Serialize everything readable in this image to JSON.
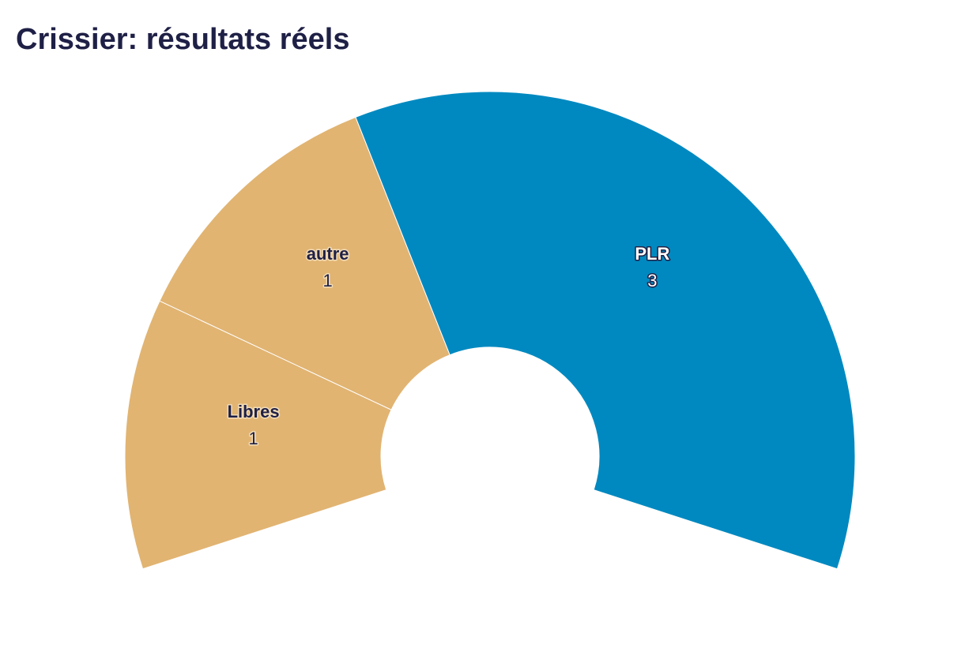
{
  "chart_data": {
    "type": "pie",
    "title": "Crissier: résultats réels",
    "categories": [
      "Libres",
      "autre",
      "PLR"
    ],
    "values": [
      1,
      1,
      3
    ],
    "colors": [
      "#e1b472",
      "#e1b472",
      "#0089c0"
    ]
  }
}
